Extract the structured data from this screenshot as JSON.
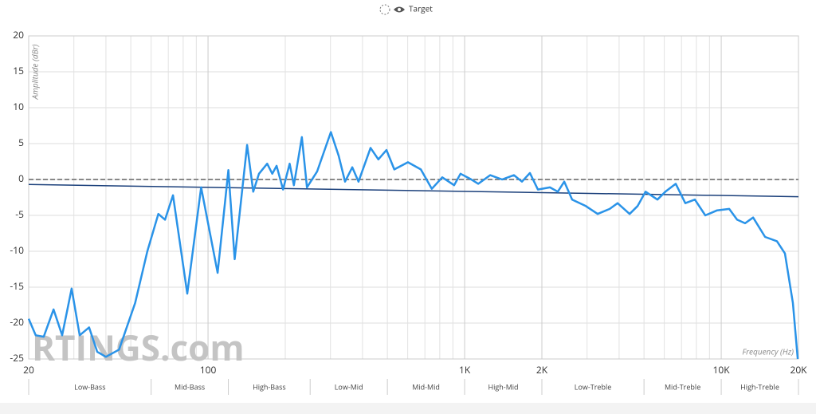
{
  "chart_data": {
    "type": "line",
    "legend": "Target",
    "y_label": "Amplitude (dBr)",
    "x_label": "Frequency (Hz)",
    "watermark": "RTINGS.com",
    "log_x": true,
    "xlim": [
      20,
      20000
    ],
    "ylim": [
      -25,
      20
    ],
    "xticks": [
      20,
      100,
      {
        "value": 1000,
        "label": "1K"
      },
      {
        "value": 2000,
        "label": "2K"
      },
      {
        "value": 10000,
        "label": "10K"
      },
      {
        "value": 20000,
        "label": "20K"
      }
    ],
    "x_minor_grid": [
      30,
      40,
      50,
      60,
      70,
      80,
      90,
      200,
      300,
      400,
      500,
      600,
      700,
      800,
      900,
      3000,
      4000,
      5000,
      6000,
      7000,
      8000,
      9000
    ],
    "yticks": [
      20,
      15,
      10,
      5,
      0,
      -5,
      -10,
      -15,
      -20,
      -25
    ],
    "bands": [
      "Low-Bass",
      "Mid-Bass",
      "High-Bass",
      "Low-Mid",
      "Mid-Mid",
      "High-Mid",
      "Low-Treble",
      "Mid-Treble",
      "High-Treble"
    ],
    "band_edges": [
      20,
      60,
      120,
      250,
      500,
      1000,
      2000,
      5000,
      10000,
      20000
    ],
    "series": [
      {
        "color": "#888888",
        "dashed": true,
        "x": [
          20,
          20000
        ],
        "values": [
          0,
          0
        ]
      },
      {
        "name": "Target",
        "color": "#1a3f7a",
        "x": [
          20,
          20000
        ],
        "values": [
          -0.7,
          -2.4
        ]
      },
      {
        "color": "#2a93e8",
        "x": [
          20,
          21.3,
          22.9,
          25,
          27,
          29.4,
          31.6,
          34.4,
          37,
          40,
          45,
          52,
          58,
          64,
          68,
          73,
          83,
          94,
          109,
          120,
          127,
          142,
          150,
          158,
          170,
          178,
          185,
          196,
          208,
          216,
          232,
          243,
          266,
          301,
          323,
          342,
          365,
          386,
          430,
          461,
          496,
          532,
          601,
          675,
          745,
          818,
          910,
          964,
          1050,
          1130,
          1257,
          1400,
          1557,
          1672,
          1796,
          1930,
          2150,
          2308,
          2445,
          2625,
          2966,
          3300,
          3675,
          3946,
          4395,
          4721,
          5070,
          5640,
          6057,
          6650,
          7245,
          7892,
          8670,
          9640,
          10740,
          11530,
          12390,
          13310,
          14820,
          16490,
          17710,
          19020,
          19870
        ],
        "values": [
          -19.4,
          -21.7,
          -21.9,
          -18.1,
          -21.7,
          -15.2,
          -21.7,
          -20.6,
          -24,
          -24.7,
          -23.7,
          -17.2,
          -10,
          -4.8,
          -5.6,
          -2.2,
          -15.9,
          -1.1,
          -13,
          1.3,
          -11.1,
          4.8,
          -1.7,
          0.8,
          2.2,
          0.8,
          1.9,
          -1.4,
          2.2,
          -0.8,
          5.9,
          -1.1,
          1.1,
          6.6,
          3.3,
          -0.3,
          1.7,
          -0.3,
          4.4,
          2.8,
          4.1,
          1.4,
          2.4,
          1.4,
          -1.3,
          0.3,
          -0.8,
          0.8,
          0.1,
          -0.6,
          0.6,
          0,
          0.6,
          -0.3,
          0.9,
          -1.4,
          -1.1,
          -1.7,
          -0.3,
          -2.8,
          -3.7,
          -4.8,
          -4.1,
          -3.3,
          -4.8,
          -3.7,
          -1.7,
          -2.8,
          -1.7,
          -0.6,
          -3.3,
          -2.8,
          -5,
          -4.3,
          -4.1,
          -5.6,
          -6.1,
          -5.3,
          -8,
          -8.6,
          -10.3,
          -17.2,
          -25
        ]
      }
    ]
  }
}
